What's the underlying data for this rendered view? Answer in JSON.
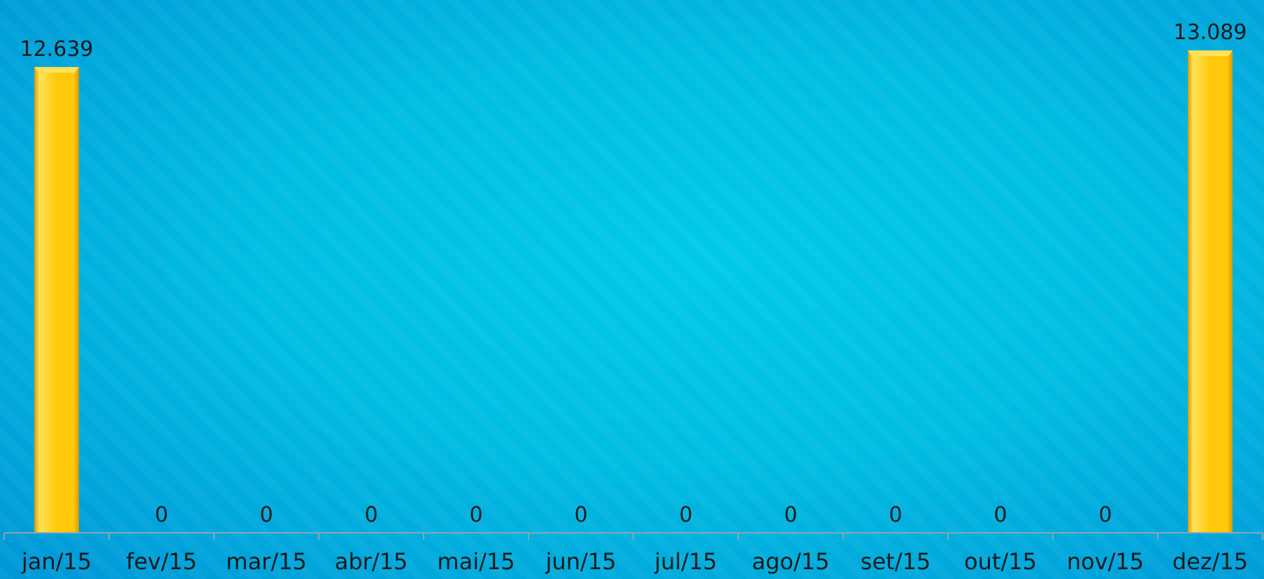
{
  "chart_data": {
    "type": "bar",
    "categories": [
      "jan/15",
      "fev/15",
      "mar/15",
      "abr/15",
      "mai/15",
      "jun/15",
      "jul/15",
      "ago/15",
      "set/15",
      "out/15",
      "nov/15",
      "dez/15"
    ],
    "values": [
      12639,
      0,
      0,
      0,
      0,
      0,
      0,
      0,
      0,
      0,
      0,
      13089
    ],
    "data_labels": [
      "12.639",
      "0",
      "0",
      "0",
      "0",
      "0",
      "0",
      "0",
      "0",
      "0",
      "0",
      "13.089"
    ],
    "title": "",
    "xlabel": "",
    "ylabel": "",
    "ylim": [
      0,
      13700
    ],
    "grid": false,
    "legend": "none",
    "colors": {
      "bar": "#ffc90a",
      "bar_light": "#ffe15a",
      "bar_dark": "#d89a00",
      "axis": "#8aa6b4",
      "text": "#1a1a1a"
    }
  }
}
